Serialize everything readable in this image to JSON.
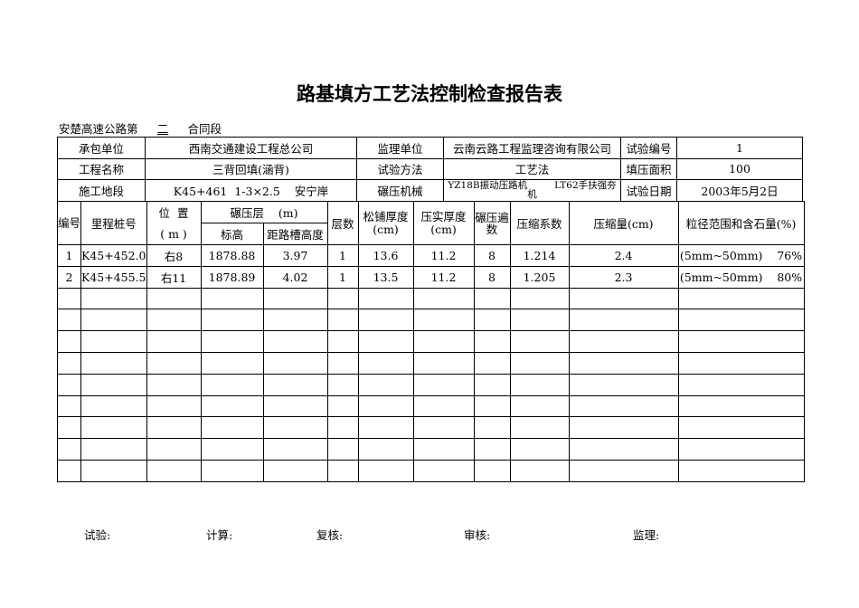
{
  "title": "路基填方工艺法控制检查报告表",
  "subtitle": {
    "prefix": "安楚高速公路第",
    "section": "二",
    "suffix": "合同段"
  },
  "info": {
    "contractor_label": "承包单位",
    "contractor": "西南交通建设工程总公司",
    "supervisor_label": "监理单位",
    "supervisor": "云南云路工程监理咨询有限公司",
    "test_no_label": "试验编号",
    "test_no": "1",
    "project_label": "工程名称",
    "project": "三背回填(涵背)",
    "method_label": "试验方法",
    "method": "工艺法",
    "area_label": "填压面积",
    "area": "100",
    "site_label": "施工地段",
    "site": "K45+461  1-3×2.5    安宁岸",
    "machine_label": "碾压机械",
    "machine": "YZ18B振动压路机         LT62手扶强夯机",
    "date_label": "试验日期",
    "date": "2003年5月2日"
  },
  "headers": {
    "no": "编号",
    "station": "里程桩号",
    "pos": "位  置",
    "pos_unit": "( m )",
    "layer": "碾压层    (m)",
    "elev": "标高",
    "dist": "距路槽高度",
    "layers": "层数",
    "loose": "松铺厚度(cm)",
    "compact": "压实厚度(cm)",
    "passes": "碾压遍数",
    "coef": "压缩系数",
    "amount": "压缩量(cm)",
    "grain": "粒径范围和含石量(%)"
  },
  "rows": [
    [
      "1",
      "K45+452.0",
      "右8",
      "1878.88",
      "3.97",
      "1",
      "13.6",
      "11.2",
      "8",
      "1.214",
      "2.4",
      "(5mm~50mm)    76%"
    ],
    [
      "2",
      "K45+455.5",
      "右11",
      "1878.89",
      "4.02",
      "1",
      "13.5",
      "11.2",
      "8",
      "1.205",
      "2.3",
      "(5mm~50mm)    80%"
    ],
    [
      "",
      "",
      "",
      "",
      "",
      "",
      "",
      "",
      "",
      "",
      "",
      ""
    ],
    [
      "",
      "",
      "",
      "",
      "",
      "",
      "",
      "",
      "",
      "",
      "",
      ""
    ],
    [
      "",
      "",
      "",
      "",
      "",
      "",
      "",
      "",
      "",
      "",
      "",
      ""
    ],
    [
      "",
      "",
      "",
      "",
      "",
      "",
      "",
      "",
      "",
      "",
      "",
      ""
    ],
    [
      "",
      "",
      "",
      "",
      "",
      "",
      "",
      "",
      "",
      "",
      "",
      ""
    ],
    [
      "",
      "",
      "",
      "",
      "",
      "",
      "",
      "",
      "",
      "",
      "",
      ""
    ],
    [
      "",
      "",
      "",
      "",
      "",
      "",
      "",
      "",
      "",
      "",
      "",
      ""
    ],
    [
      "",
      "",
      "",
      "",
      "",
      "",
      "",
      "",
      "",
      "",
      "",
      ""
    ],
    [
      "",
      "",
      "",
      "",
      "",
      "",
      "",
      "",
      "",
      "",
      "",
      ""
    ]
  ],
  "footer": {
    "test": "试验:",
    "calc": "计算:",
    "review": "复核:",
    "audit": "审核:",
    "supervise": "监理:"
  }
}
